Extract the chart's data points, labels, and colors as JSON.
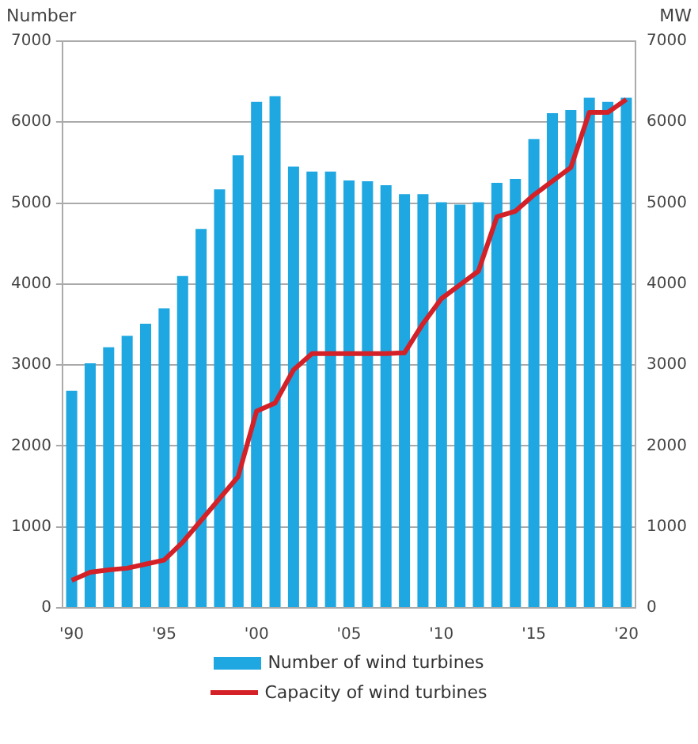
{
  "chart_data": {
    "type": "bar",
    "ylabel": "Number",
    "y2label": "MW",
    "categories": [
      "'90",
      null,
      null,
      null,
      null,
      "'95",
      null,
      null,
      null,
      null,
      "'00",
      null,
      null,
      null,
      null,
      "'05",
      null,
      null,
      null,
      null,
      "'10",
      null,
      null,
      null,
      null,
      "'15",
      null,
      null,
      null,
      null,
      "'20"
    ],
    "series": [
      {
        "name": "Number of wind turbines",
        "color": "#1ea7e1",
        "values": [
          2680,
          3020,
          3220,
          3360,
          3510,
          3700,
          4100,
          4680,
          5170,
          5590,
          6250,
          6320,
          5450,
          5390,
          5390,
          5280,
          5270,
          5220,
          5110,
          5110,
          5010,
          4980,
          5010,
          5250,
          5300,
          5790,
          6110,
          6150,
          6300,
          6250,
          6300
        ]
      },
      {
        "name": "Capacity of wind turbines",
        "type": "line",
        "axis": "y2",
        "color": "#d42027",
        "values": [
          340,
          440,
          470,
          490,
          540,
          590,
          810,
          1080,
          1350,
          1620,
          2430,
          2530,
          2940,
          3140,
          3140,
          3140,
          3140,
          3140,
          3150,
          3510,
          3820,
          3990,
          4160,
          4830,
          4900,
          5100,
          5270,
          5440,
          6120,
          6120,
          6280
        ]
      }
    ],
    "ylim": [
      0,
      7000
    ],
    "yticks": [
      0,
      1000,
      2000,
      3000,
      4000,
      5000,
      6000,
      7000
    ],
    "y2lim": [
      0,
      7000
    ],
    "y2ticks": [
      0,
      1000,
      2000,
      3000,
      4000,
      5000,
      6000,
      7000
    ],
    "grid": "y",
    "legend": "bottom",
    "marker": "none",
    "line_style": "solid"
  }
}
